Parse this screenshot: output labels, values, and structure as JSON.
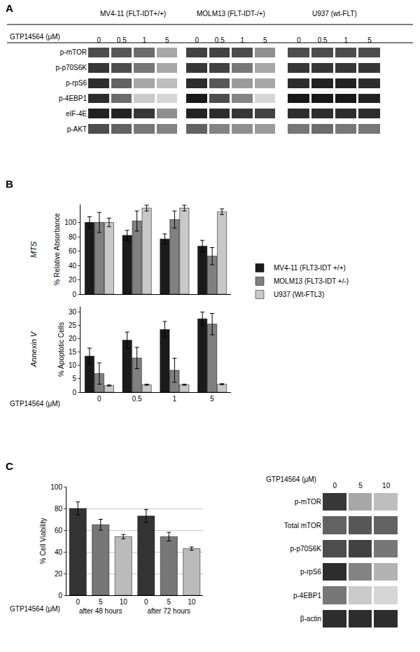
{
  "chart_data": [
    {
      "type": "heatmap",
      "panel_label": "A",
      "title": "MV4-11 (FLT-IDT+/+)",
      "x_label": "GTP14564 (μM)",
      "categories": [
        "0",
        "0.5",
        "1",
        "5"
      ],
      "rows": [
        "p-mTOR",
        "p-p70S6K",
        "p-rpS6",
        "p-4EBP1",
        "eIF-4E",
        "p-AKT"
      ],
      "cells": [
        [
          0.7,
          0.65,
          0.55,
          0.3
        ],
        [
          0.8,
          0.7,
          0.5,
          0.3
        ],
        [
          0.85,
          0.6,
          0.3,
          0.2
        ],
        [
          0.85,
          0.55,
          0.15,
          0.1
        ],
        [
          0.9,
          0.9,
          0.8,
          0.4
        ],
        [
          0.7,
          0.6,
          0.5,
          0.45
        ]
      ],
      "zlim": [
        0,
        1
      ]
    },
    {
      "type": "heatmap",
      "title": "MOLM13 (FLT-IDT-/+)",
      "categories": [
        "0",
        "0.5",
        "1",
        "5"
      ],
      "rows": [
        "p-mTOR",
        "p-p70S6K",
        "p-rpS6",
        "p-4EBP1",
        "eIF-4E",
        "p-AKT"
      ],
      "cells": [
        [
          0.75,
          0.75,
          0.7,
          0.4
        ],
        [
          0.8,
          0.75,
          0.5,
          0.3
        ],
        [
          0.85,
          0.65,
          0.35,
          0.3
        ],
        [
          0.95,
          0.7,
          0.45,
          0.1
        ],
        [
          0.9,
          0.85,
          0.8,
          0.75
        ],
        [
          0.6,
          0.45,
          0.4,
          0.35
        ]
      ],
      "zlim": [
        0,
        1
      ]
    },
    {
      "type": "heatmap",
      "title": "U937 (wt-FLT)",
      "categories": [
        "0",
        "0.5",
        "1",
        "5"
      ],
      "rows": [
        "p-mTOR",
        "p-p70S6K",
        "p-rpS6",
        "p-4EBP1",
        "eIF-4E",
        "p-AKT"
      ],
      "cells": [
        [
          0.7,
          0.7,
          0.7,
          0.7
        ],
        [
          0.8,
          0.8,
          0.8,
          0.8
        ],
        [
          0.85,
          0.9,
          0.9,
          0.85
        ],
        [
          0.95,
          0.95,
          0.95,
          0.9
        ],
        [
          0.85,
          0.85,
          0.85,
          0.85
        ],
        [
          0.5,
          0.55,
          0.5,
          0.5
        ]
      ],
      "zlim": [
        0,
        1
      ]
    },
    {
      "type": "bar",
      "panel_label": "B",
      "y_group_label": "MTS",
      "y_label": "% Relative Absorbance",
      "categories": [
        "0",
        "0.5",
        "1",
        "5"
      ],
      "series": [
        {
          "name": "MV4-11 (FLT3-IDT +/+)",
          "color": "#1a1a1a",
          "values": [
            100,
            82,
            77,
            67
          ],
          "errors": [
            8,
            7,
            7,
            8
          ]
        },
        {
          "name": "MOLM13 (FLT3-IDT +/-)",
          "color": "#808080",
          "values": [
            100,
            102,
            104,
            53
          ],
          "errors": [
            14,
            14,
            12,
            12
          ]
        },
        {
          "name": "U937 (Wt-FTL3)",
          "color": "#c8c8c8",
          "values": [
            100,
            120,
            120,
            115
          ],
          "errors": [
            6,
            4,
            4,
            4
          ]
        }
      ],
      "ylim": [
        0,
        125
      ],
      "yticks": [
        0,
        20,
        40,
        60,
        80,
        100
      ],
      "grid": false,
      "tick_labels": "y"
    },
    {
      "type": "bar",
      "y_group_label": "Annexin V",
      "y_label": "% Apoptotic Cells",
      "x_label": "GTP14564 (μM)",
      "categories": [
        "0",
        "0.5",
        "1",
        "5"
      ],
      "series": [
        {
          "name": "MV4-11 (FLT3-IDT +/+)",
          "color": "#1a1a1a",
          "values": [
            13.5,
            19.5,
            23.5,
            27.5
          ],
          "errors": [
            3,
            3,
            3,
            2.5
          ]
        },
        {
          "name": "MOLM13 (FLT3-IDT +/-)",
          "color": "#808080",
          "values": [
            7,
            12.8,
            8.2,
            25.5
          ],
          "errors": [
            4,
            4,
            4.5,
            4
          ]
        },
        {
          "name": "U937 (Wt-FTL3)",
          "color": "#c8c8c8",
          "values": [
            2.5,
            2.8,
            2.8,
            3
          ],
          "errors": [
            0.2,
            0.2,
            0.2,
            0.2
          ]
        }
      ],
      "ylim": [
        0,
        32
      ],
      "yticks": [
        0,
        5,
        10,
        15,
        20,
        25,
        30
      ],
      "grid": false,
      "legend": "right"
    },
    {
      "type": "bar",
      "panel_label": "C",
      "y_label": "% Cell Viability",
      "x_label": "GTP14564 (μM)",
      "groups": [
        "after 48 hours",
        "after 48 hours",
        "after 48 hours",
        "after 72 hours",
        "after 72 hours",
        "after 72 hours"
      ],
      "categories": [
        "0",
        "5",
        "10",
        "0",
        "5",
        "10"
      ],
      "values": [
        80,
        65,
        54,
        73,
        54,
        43
      ],
      "errors": [
        6,
        5,
        2,
        6,
        4,
        1.5
      ],
      "colors": [
        "#333333",
        "#777777",
        "#bbbbbb",
        "#333333",
        "#777777",
        "#bbbbbb"
      ],
      "ylim": [
        0,
        100
      ],
      "yticks": [
        0,
        20,
        40,
        60,
        80,
        100
      ],
      "grid": true
    },
    {
      "type": "heatmap",
      "x_label": "GTP14564 (μM)",
      "categories": [
        "0",
        "5",
        "10"
      ],
      "rows": [
        "p-mTOR",
        "Total mTOR",
        "p-p70S6K",
        "p-rpS6",
        "p-4EBP1",
        "β-actin"
      ],
      "cells": [
        [
          0.8,
          0.3,
          0.2
        ],
        [
          0.6,
          0.65,
          0.6
        ],
        [
          0.7,
          0.75,
          0.5
        ],
        [
          0.85,
          0.45,
          0.25
        ],
        [
          0.5,
          0.15,
          0.1
        ],
        [
          0.85,
          0.85,
          0.85
        ]
      ],
      "zlim": [
        0,
        1
      ]
    }
  ]
}
